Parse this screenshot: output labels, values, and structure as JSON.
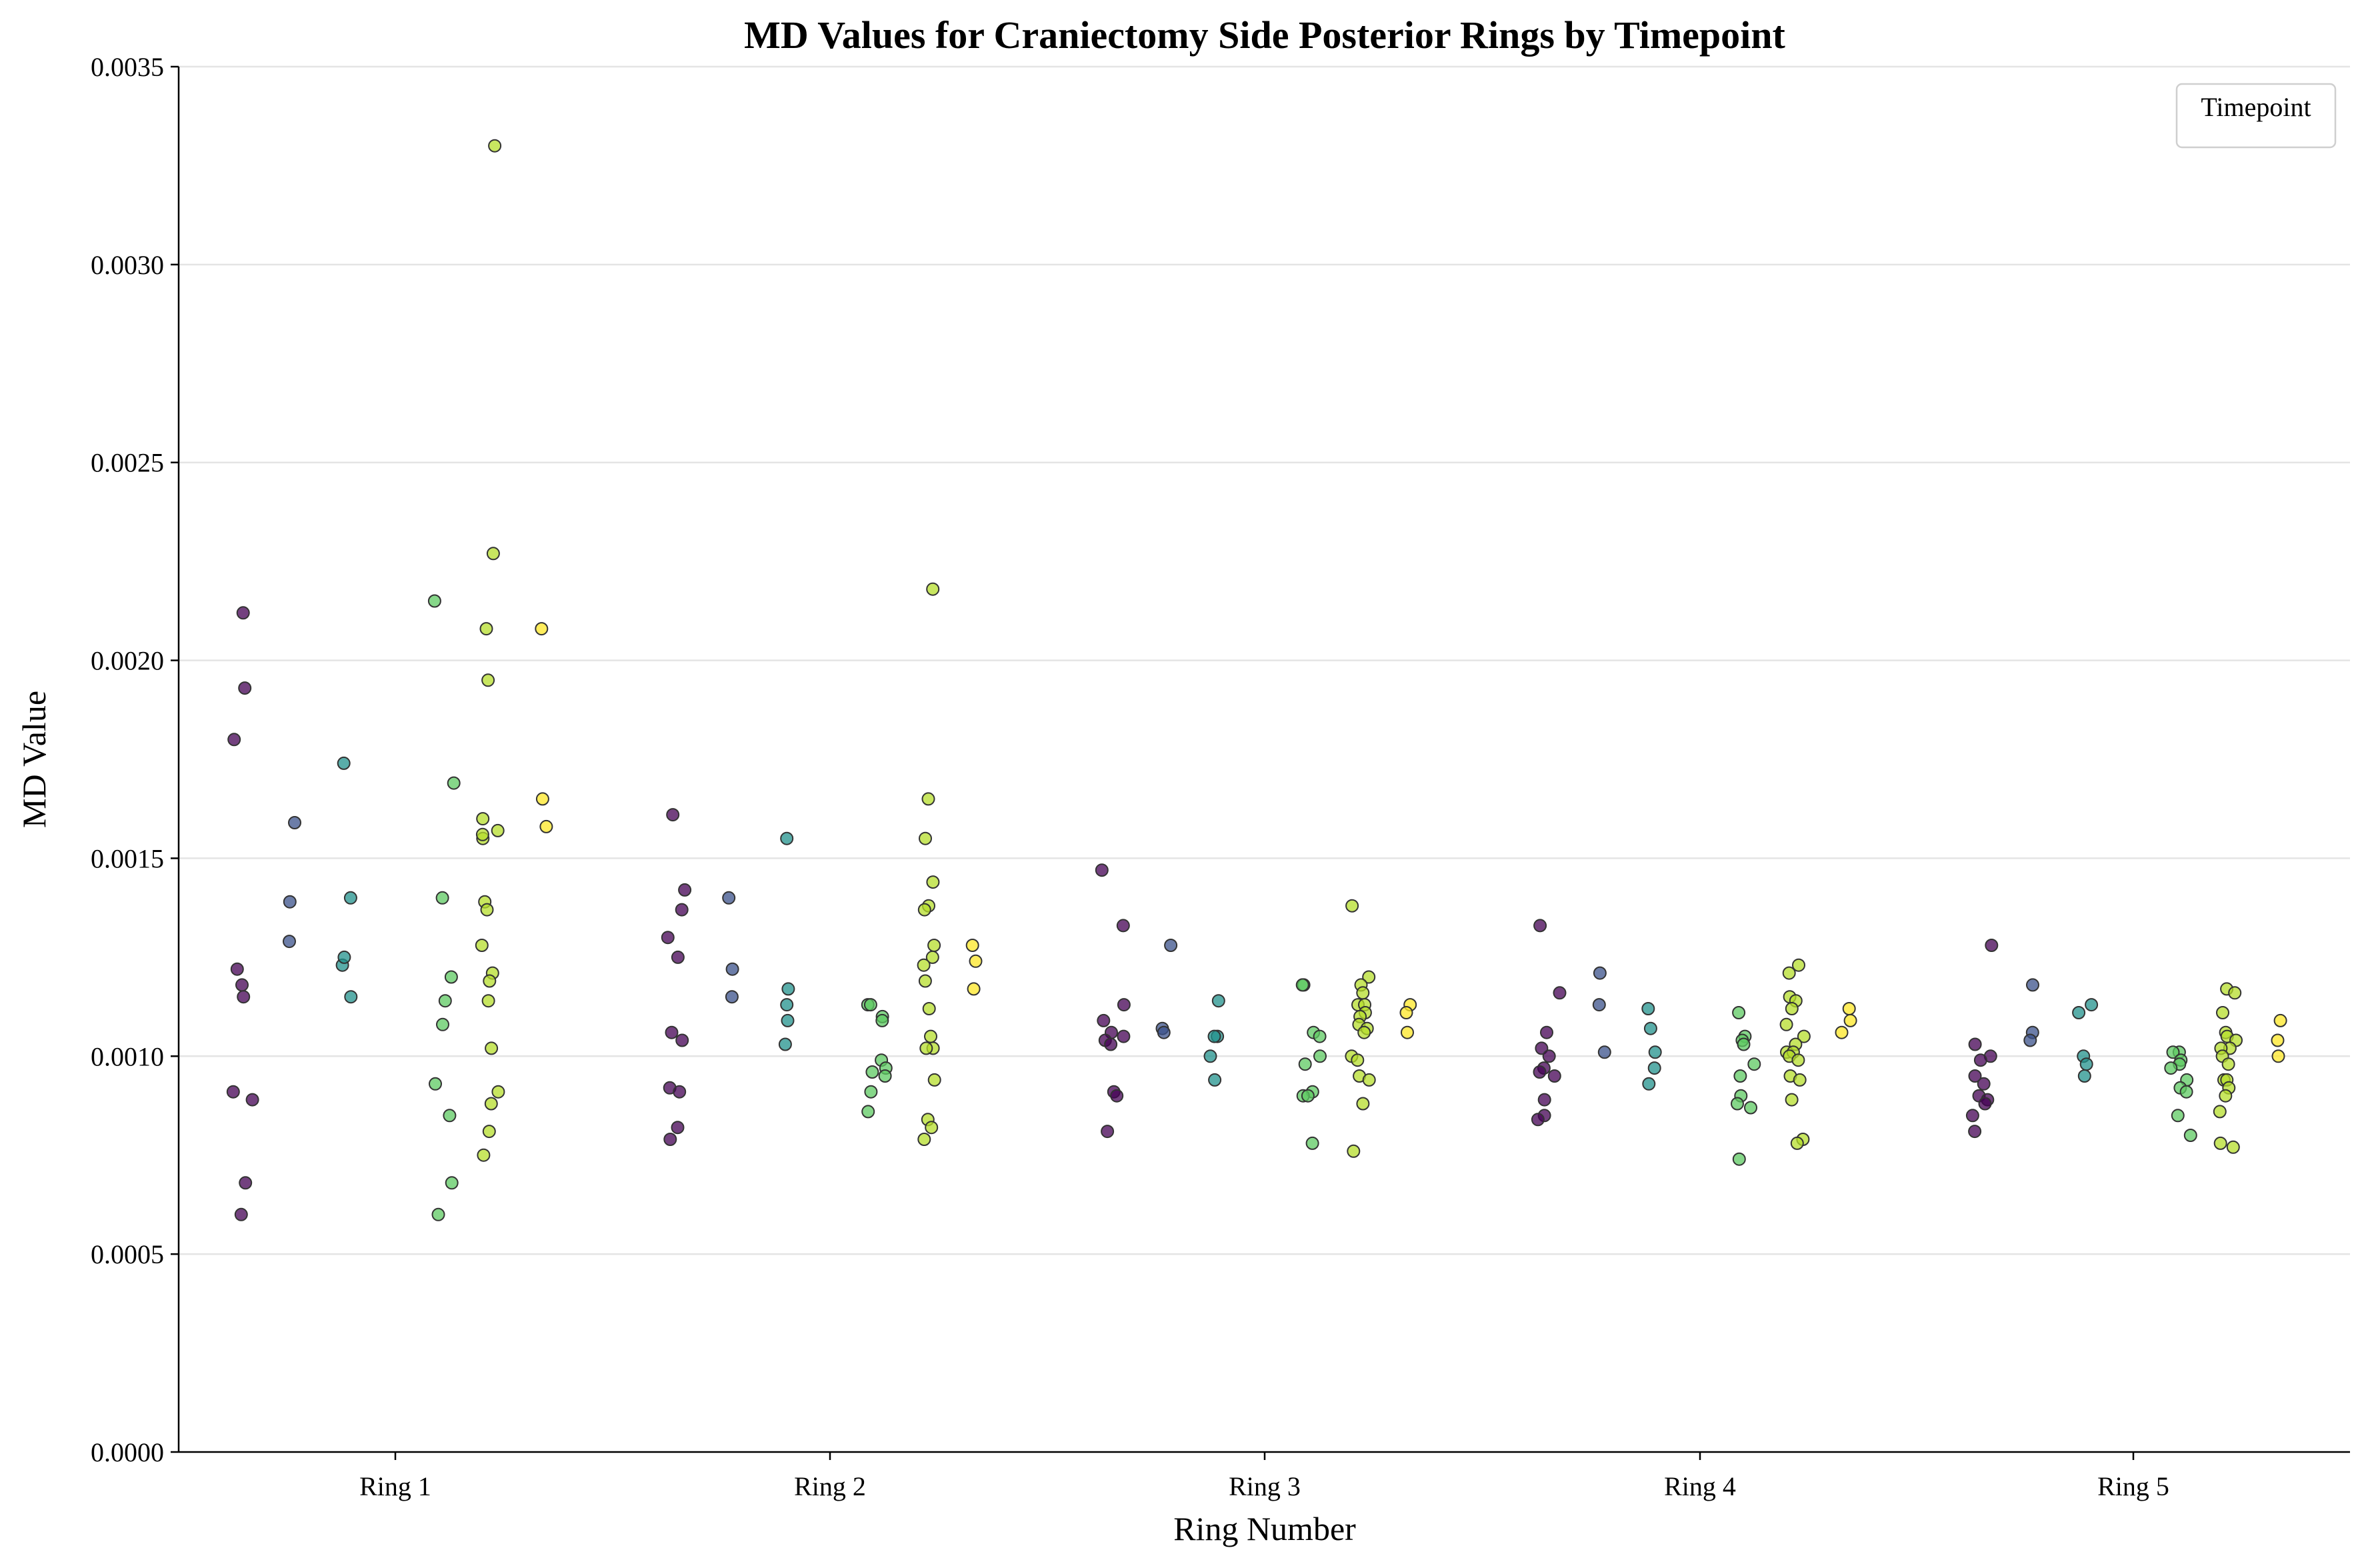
{
  "chart_data": {
    "type": "scatter",
    "title": "MD Values for Craniectomy Side Posterior Rings by Timepoint",
    "xlabel": "Ring Number",
    "ylabel": "MD Value",
    "categories": [
      "Ring 1",
      "Ring 2",
      "Ring 3",
      "Ring 4",
      "Ring 5"
    ],
    "ylim": [
      0,
      0.0035
    ],
    "yticks": [
      "0.0000",
      "0.0005",
      "0.0010",
      "0.0015",
      "0.0020",
      "0.0025",
      "0.0030",
      "0.0035"
    ],
    "grid": "horizontal",
    "legend": {
      "title": "Timepoint",
      "placement": "top-right"
    },
    "timepoint_colors": [
      "#440154",
      "#3b528b",
      "#21918c",
      "#5ec962",
      "#b5de2b",
      "#fde725"
    ],
    "series": [
      {
        "timepoint_index": 0,
        "values": [
          [
            0.00212,
            0.00193,
            0.0018,
            0.00122,
            0.00118,
            0.00115,
            0.00091,
            0.00089,
            0.00068,
            0.0006
          ],
          [
            0.00161,
            0.00142,
            0.00137,
            0.0013,
            0.00125,
            0.00106,
            0.00104,
            0.00092,
            0.00091,
            0.00082,
            0.00079
          ],
          [
            0.00147,
            0.00133,
            0.00113,
            0.00109,
            0.00106,
            0.00105,
            0.00104,
            0.00103,
            0.00091,
            0.0009,
            0.00081
          ],
          [
            0.00133,
            0.00116,
            0.00106,
            0.00102,
            0.001,
            0.00097,
            0.00096,
            0.00095,
            0.00089,
            0.00085,
            0.00084
          ],
          [
            0.00128,
            0.00103,
            0.001,
            0.00099,
            0.00095,
            0.00093,
            0.0009,
            0.00089,
            0.00088,
            0.00085,
            0.00081
          ]
        ]
      },
      {
        "timepoint_index": 1,
        "values": [
          [
            0.00159,
            0.00139,
            0.00129
          ],
          [
            0.0014,
            0.00122,
            0.00115
          ],
          [
            0.00128,
            0.00107,
            0.00106
          ],
          [
            0.00121,
            0.00113,
            0.00101
          ],
          [
            0.00118,
            0.00106,
            0.00104
          ]
        ]
      },
      {
        "timepoint_index": 2,
        "values": [
          [
            0.00174,
            0.0014,
            0.00123,
            0.00125,
            0.00115
          ],
          [
            0.00155,
            0.00117,
            0.00109,
            0.00113,
            0.00103
          ],
          [
            0.00114,
            0.00105,
            0.001,
            0.00105,
            0.00094
          ],
          [
            0.00112,
            0.00107,
            0.00097,
            0.00101,
            0.00093
          ],
          [
            0.00113,
            0.00111,
            0.001,
            0.00098,
            0.00095
          ]
        ]
      },
      {
        "timepoint_index": 3,
        "values": [
          [
            0.00215,
            0.00169,
            0.0014,
            0.0012,
            0.00114,
            0.00108,
            0.00093,
            0.00085,
            0.00068,
            0.0006
          ],
          [
            0.00113,
            0.00113,
            0.0011,
            0.00109,
            0.00099,
            0.00097,
            0.00096,
            0.00095,
            0.00091,
            0.00086
          ],
          [
            0.00118,
            0.00118,
            0.00106,
            0.00105,
            0.001,
            0.00098,
            0.00091,
            0.0009,
            0.0009,
            0.00078
          ],
          [
            0.00111,
            0.00105,
            0.00104,
            0.00103,
            0.00098,
            0.00095,
            0.0009,
            0.00088,
            0.00087,
            0.00074
          ],
          [
            0.00101,
            0.00101,
            0.00099,
            0.00098,
            0.00097,
            0.00094,
            0.00092,
            0.00091,
            0.00085,
            0.0008
          ]
        ]
      },
      {
        "timepoint_index": 4,
        "values": [
          [
            0.0033,
            0.00227,
            0.00208,
            0.00195,
            0.0016,
            0.00157,
            0.00155,
            0.00156,
            0.00139,
            0.00137,
            0.00128,
            0.00121,
            0.00119,
            0.00114,
            0.00102,
            0.00091,
            0.00088,
            0.00081,
            0.00075
          ],
          [
            0.00218,
            0.00165,
            0.00155,
            0.00144,
            0.00138,
            0.00137,
            0.00128,
            0.00125,
            0.00123,
            0.00119,
            0.00112,
            0.00105,
            0.00102,
            0.00102,
            0.00094,
            0.00084,
            0.00082,
            0.00079
          ],
          [
            0.00138,
            0.0012,
            0.00118,
            0.00116,
            0.00113,
            0.00113,
            0.00111,
            0.0011,
            0.00108,
            0.00107,
            0.00106,
            0.001,
            0.00099,
            0.00095,
            0.00094,
            0.00088,
            0.00076
          ],
          [
            0.00123,
            0.00121,
            0.00115,
            0.00114,
            0.00112,
            0.00108,
            0.00105,
            0.00103,
            0.00101,
            0.00101,
            0.001,
            0.00099,
            0.00095,
            0.00094,
            0.00089,
            0.00079,
            0.00078
          ],
          [
            0.00117,
            0.00116,
            0.00111,
            0.00106,
            0.00105,
            0.00104,
            0.00102,
            0.00102,
            0.001,
            0.00098,
            0.00094,
            0.00094,
            0.00092,
            0.0009,
            0.00086,
            0.00078,
            0.00077
          ]
        ]
      },
      {
        "timepoint_index": 5,
        "values": [
          [
            0.00208,
            0.00165,
            0.00158
          ],
          [
            0.00128,
            0.00124,
            0.00117
          ],
          [
            0.00113,
            0.00111,
            0.00106
          ],
          [
            0.00112,
            0.00109,
            0.00106
          ],
          [
            0.00109,
            0.00104,
            0.001
          ]
        ]
      }
    ]
  }
}
